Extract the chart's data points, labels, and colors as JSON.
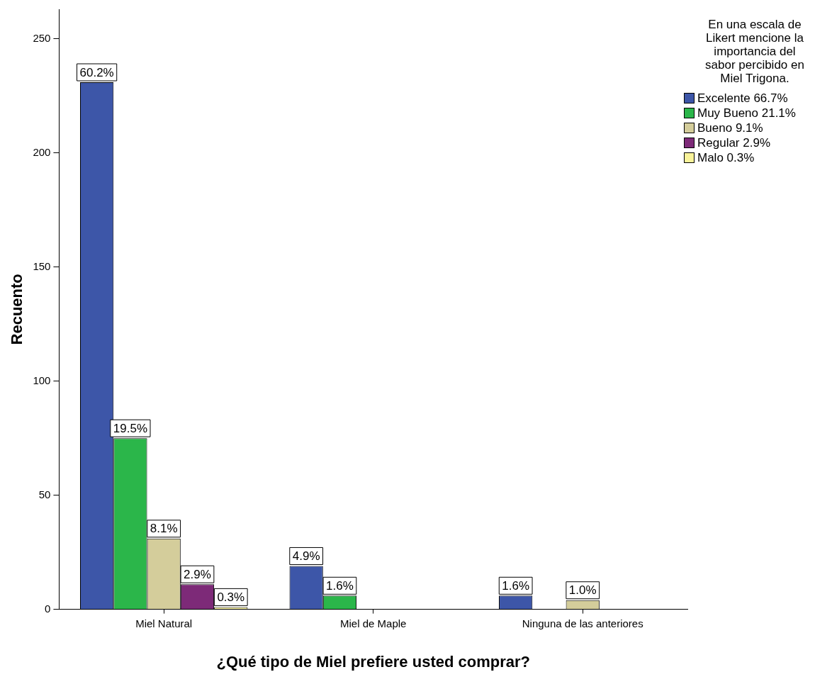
{
  "chart_data": {
    "type": "bar",
    "categories": [
      "Miel Natural",
      "Miel de Maple",
      "Ninguna de las anteriores"
    ],
    "xlabel": "¿Qué tipo de Miel prefiere usted comprar?",
    "ylabel": "Recuento",
    "legend_title": "En una escala de Likert mencione la importancia del sabor  percibido en Miel Trigona.",
    "series": [
      {
        "name": "Excelente 66.7%",
        "color": "#3d56a8",
        "values": [
          231,
          19,
          6
        ]
      },
      {
        "name": "Muy Bueno 21.1%",
        "color": "#2bb64a",
        "values": [
          75,
          6,
          null
        ]
      },
      {
        "name": "Bueno 9.1%",
        "color": "#d4cd9b",
        "values": [
          31,
          null,
          4
        ]
      },
      {
        "name": "Regular 2.9%",
        "color": "#7d2a78",
        "values": [
          11,
          null,
          null
        ]
      },
      {
        "name": "Malo 0.3%",
        "color": "#f9f39a",
        "values": [
          1,
          null,
          null
        ]
      }
    ],
    "annotations": [
      "60.2%",
      "19.5%",
      "8.1%",
      "2.9%",
      "0.3%",
      "4.9%",
      "1.6%",
      "1.6%",
      "1.0%"
    ],
    "ylim": [
      0,
      263
    ],
    "yticks": [
      0,
      50,
      100,
      150,
      200,
      250
    ],
    "grid": false,
    "legend": "top right"
  }
}
